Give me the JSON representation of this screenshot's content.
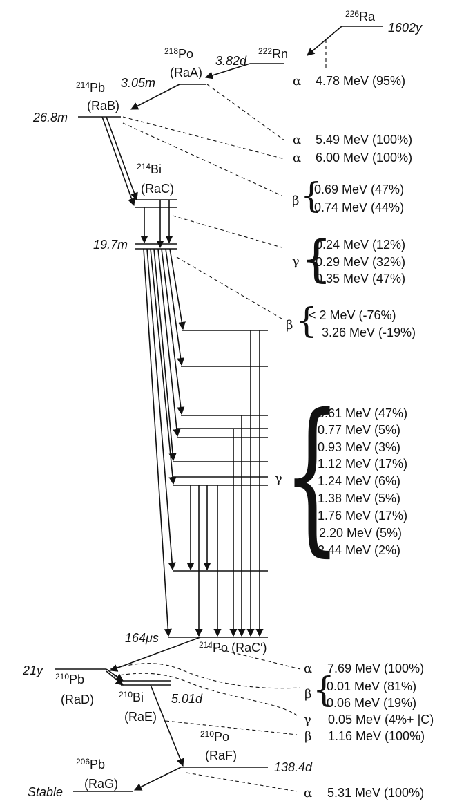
{
  "nuclides": {
    "ra226": {
      "mass": "226",
      "symbol": "Ra",
      "halflife": "1602y"
    },
    "rn222": {
      "mass": "222",
      "symbol": "Rn",
      "halflife": "3.82d"
    },
    "po218": {
      "mass": "218",
      "symbol": "Po",
      "alias": "(RaA)",
      "halflife": "3.05m"
    },
    "pb214": {
      "mass": "214",
      "symbol": "Pb",
      "alias": "(RaB)",
      "halflife": "26.8m"
    },
    "bi214": {
      "mass": "214",
      "symbol": "Bi",
      "alias": "(RaC)",
      "halflife": "19.7m"
    },
    "po214": {
      "mass": "214",
      "symbol": "Po",
      "alias": "(RaC′)",
      "halflife": "164μs"
    },
    "pb210": {
      "mass": "210",
      "symbol": "Pb",
      "alias": "(RaD)",
      "halflife": "21y"
    },
    "bi210": {
      "mass": "210",
      "symbol": "Bi",
      "alias": "(RaE)",
      "halflife": "5.01d"
    },
    "po210": {
      "mass": "210",
      "symbol": "Po",
      "alias": "(RaF)",
      "halflife": "138.4d"
    },
    "pb206": {
      "mass": "206",
      "symbol": "Pb",
      "alias": "(RaG)",
      "halflife": "Stable"
    }
  },
  "symbols": {
    "alpha": "α",
    "beta": "β",
    "gamma": "γ"
  },
  "decays": {
    "ra226_alpha": "4.78 MeV (95%)",
    "rn222_alpha": "5.49 MeV (100%)",
    "po218_alpha": "6.00 MeV (100%)",
    "pb214_beta": [
      "0.69 MeV (47%)",
      "0.74 MeV (44%)"
    ],
    "pb214_gamma": [
      "0.24 MeV (12%)",
      "0.29 MeV (32%)",
      "0.35 MeV (47%)"
    ],
    "bi214_beta": [
      "< 2 MeV (-76%)",
      "3.26 MeV (-19%)"
    ],
    "bi214_gamma": [
      "0.61 MeV (47%)",
      "0.77 MeV (5%)",
      "0.93 MeV (3%)",
      "1.12 MeV (17%)",
      "1.24 MeV (6%)",
      "1.38 MeV (5%)",
      "1.76 MeV (17%)",
      "2.20 MeV (5%)",
      "2.44 MeV (2%)"
    ],
    "po214_alpha": "7.69 MeV (100%)",
    "pb210_beta": [
      "0.01 MeV (81%)",
      "0.06 MeV (19%)"
    ],
    "pb210_gamma": "0.05 MeV (4%+ |C)",
    "bi210_beta": "1.16 MeV (100%)",
    "po210_alpha": "5.31 MeV (100%)"
  }
}
